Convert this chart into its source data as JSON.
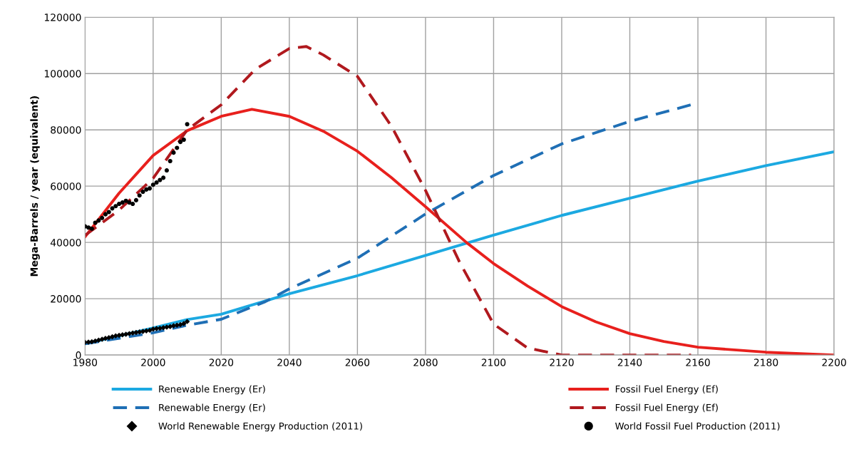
{
  "chart_data": {
    "type": "line",
    "ylabel": "Mega-Barrels / year (equivalent)",
    "xlim": [
      1980,
      2200
    ],
    "xticks": [
      1980,
      2000,
      2020,
      2040,
      2060,
      2080,
      2100,
      2120,
      2140,
      2160,
      2180,
      2200
    ],
    "ylim": [
      0,
      120000
    ],
    "yticks": [
      0,
      20000,
      40000,
      60000,
      80000,
      100000,
      120000
    ],
    "grid": true,
    "legend": "bottom",
    "series": [
      {
        "name": "Renewable Energy (Er)",
        "color": "#1ca9e1",
        "line_style": "solid",
        "x": [
          1980,
          2000,
          2010,
          2020,
          2040,
          2060,
          2080,
          2100,
          2120,
          2140,
          2160,
          2180,
          2200
        ],
        "values": [
          4000,
          9600,
          12600,
          14500,
          21800,
          28200,
          35400,
          42600,
          49600,
          55700,
          61800,
          67300,
          72200
        ]
      },
      {
        "name": "Renewable Energy (Er)",
        "color": "#1f6fb5",
        "line_style": "dashed",
        "x": [
          1980,
          2000,
          2010,
          2020,
          2033,
          2040,
          2060,
          2080,
          2100,
          2120,
          2140,
          2158
        ],
        "values": [
          4000,
          7900,
          10600,
          12700,
          19000,
          23500,
          34400,
          50100,
          63800,
          75000,
          83000,
          88900
        ]
      },
      {
        "name": "World Renewable Energy Production (2011)",
        "type": "scatter",
        "marker": "diamond",
        "color": "#000000",
        "x": [
          1980,
          1981,
          1982,
          1983,
          1984,
          1985,
          1986,
          1987,
          1988,
          1989,
          1990,
          1991,
          1992,
          1993,
          1994,
          1995,
          1996,
          1997,
          1998,
          1999,
          2000,
          2001,
          2002,
          2003,
          2004,
          2005,
          2006,
          2007,
          2008,
          2009,
          2010
        ],
        "values": [
          4500,
          4600,
          4700,
          5000,
          5300,
          5600,
          5900,
          6200,
          6500,
          6800,
          7000,
          7200,
          7400,
          7600,
          7800,
          8000,
          8200,
          8400,
          8600,
          8800,
          9200,
          9400,
          9500,
          9700,
          9900,
          10100,
          10400,
          10600,
          10800,
          11200,
          11900
        ]
      },
      {
        "name": "Fossil Fuel Energy (Ef)",
        "color": "#e8201d",
        "line_style": "solid",
        "x": [
          1980,
          1990,
          2000,
          2010,
          2020,
          2029,
          2040,
          2050,
          2060,
          2070,
          2080,
          2092,
          2100,
          2110,
          2120,
          2130,
          2140,
          2150,
          2160,
          2180,
          2200
        ],
        "values": [
          42000,
          57500,
          70900,
          79700,
          84800,
          87300,
          84800,
          79500,
          72400,
          63000,
          52700,
          40000,
          32500,
          24500,
          17200,
          11800,
          7600,
          4800,
          2800,
          1000,
          0
        ]
      },
      {
        "name": "Fossil Fuel Energy (Ef)",
        "color": "#b0191e",
        "line_style": "dashed",
        "x": [
          1980,
          1990,
          2000,
          2010,
          2020,
          2030,
          2040,
          2045,
          2050,
          2060,
          2070,
          2080,
          2090,
          2100,
          2110,
          2120,
          2140,
          2158
        ],
        "values": [
          42500,
          51500,
          62800,
          80000,
          88900,
          101500,
          108900,
          109600,
          106600,
          99000,
          81300,
          58500,
          33000,
          11000,
          2500,
          0,
          0,
          0
        ]
      },
      {
        "name": "World Fossil Fuel Production (2011)",
        "type": "scatter",
        "marker": "circle",
        "color": "#000000",
        "x": [
          1980,
          1981,
          1982,
          1983,
          1984,
          1985,
          1986,
          1987,
          1988,
          1989,
          1990,
          1991,
          1992,
          1993,
          1994,
          1995,
          1996,
          1997,
          1998,
          1999,
          2000,
          2001,
          2002,
          2003,
          2004,
          2005,
          2006,
          2007,
          2008,
          2009,
          2010
        ],
        "values": [
          45700,
          45300,
          44900,
          47000,
          47800,
          48700,
          50000,
          50800,
          52100,
          52900,
          53700,
          54200,
          54800,
          54200,
          53700,
          55000,
          56700,
          58000,
          58800,
          59200,
          60500,
          61300,
          62200,
          63000,
          65600,
          68900,
          71900,
          73600,
          75700,
          76500,
          82000
        ]
      }
    ]
  }
}
